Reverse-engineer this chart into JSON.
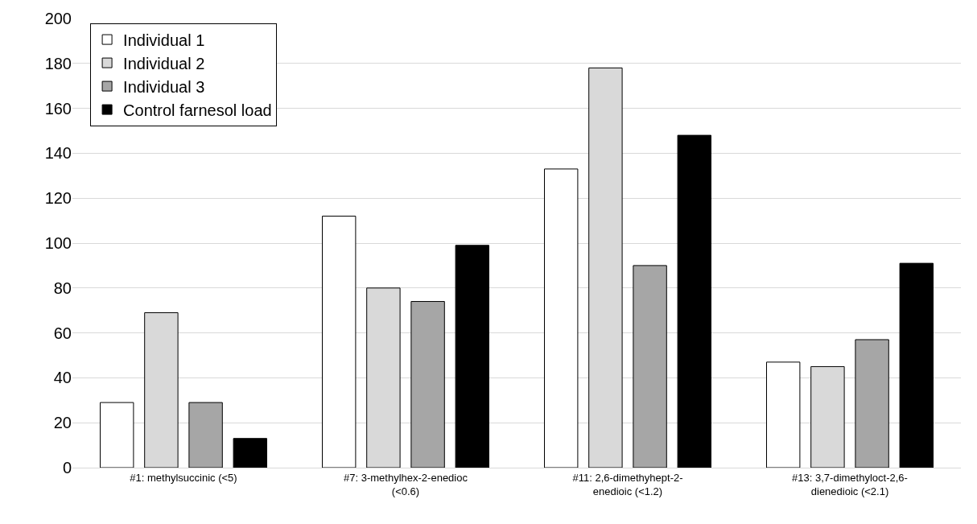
{
  "chart_data": {
    "type": "bar",
    "categories": [
      "#1: methylsuccinic (<5)",
      "#7: 3-methylhex-2-enedioc (<0.6)",
      "#11: 2,6-dimethyhept-2-enedioic (<1.2)",
      "#13: 3,7-dimethyloct-2,6-dienedioic (<2.1)"
    ],
    "series": [
      {
        "name": "Individual 1",
        "color": "#ffffff",
        "values": [
          29,
          112,
          133,
          47
        ]
      },
      {
        "name": "Individual 2",
        "color": "#d9d9d9",
        "values": [
          69,
          80,
          178,
          45
        ]
      },
      {
        "name": "Individual 3",
        "color": "#a6a6a6",
        "values": [
          29,
          74,
          90,
          57
        ]
      },
      {
        "name": "Control farnesol load",
        "color": "#000000",
        "values": [
          13,
          99,
          148,
          91
        ]
      }
    ],
    "ylim": [
      0,
      200
    ],
    "yticks": [
      0,
      20,
      40,
      60,
      80,
      100,
      120,
      140,
      160,
      180,
      200
    ],
    "grid": "y",
    "legend": "top left"
  }
}
